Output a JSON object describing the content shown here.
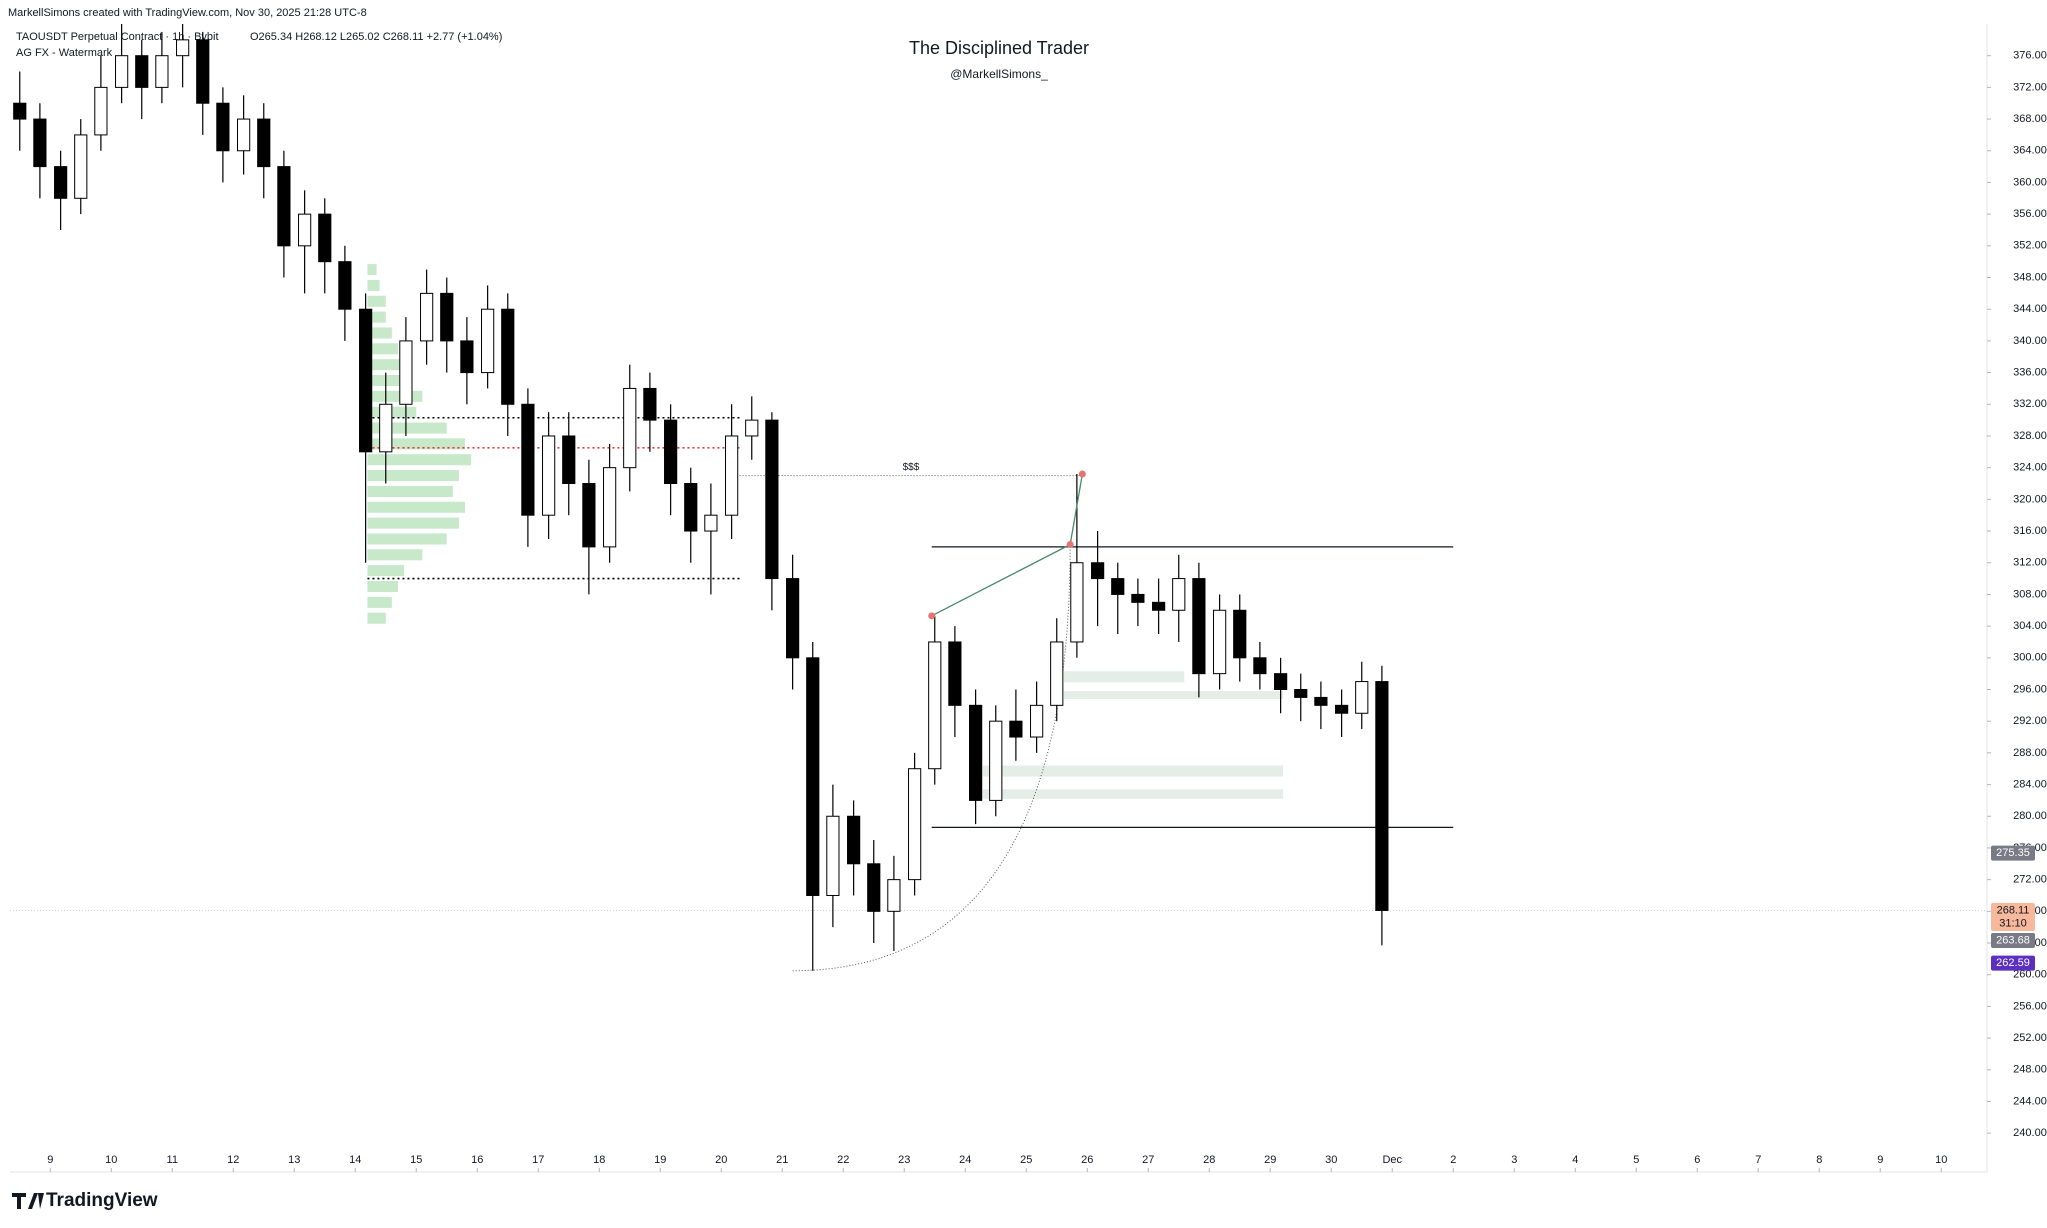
{
  "chart_data": {
    "type": "candlestick",
    "header": {
      "credit": "MarkellSimons created with TradingView.com, Nov 30, 2025 21:28 UTC-8",
      "symbol": "TAOUSDT Perpetual Contract · 1h · Bybit",
      "ohlc": "O265.34 H268.12 L265.02 C268.11 +2.77 (+1.04%)",
      "indicator": "AG FX - Watermark"
    },
    "title": "The Disciplined Trader",
    "subtitle": "@MarkellSimons_",
    "brand": "TradingView",
    "up_color": "#ffffff",
    "down_color": "#000000",
    "wick_color": "#000000",
    "grid": false,
    "x": [
      8.5,
      8.83,
      9.17,
      9.5,
      9.83,
      10.17,
      10.5,
      10.83,
      11.17,
      11.5,
      11.83,
      12.17,
      12.5,
      12.83,
      13.17,
      13.5,
      13.83,
      14.17,
      14.5,
      14.83,
      15.17,
      15.5,
      15.83,
      16.17,
      16.5,
      16.83,
      17.17,
      17.5,
      17.83,
      18.17,
      18.5,
      18.83,
      19.17,
      19.5,
      19.83,
      20.17,
      20.5,
      20.83,
      21.17,
      21.5,
      21.83,
      22.17,
      22.5,
      22.83,
      23.17,
      23.5,
      23.83,
      24.17,
      24.5,
      24.83,
      25.17,
      25.5,
      25.83,
      26.17,
      26.5,
      26.83,
      27.17,
      27.5,
      27.83,
      28.17,
      28.5,
      28.83,
      29.17,
      29.5,
      29.83,
      30.17,
      30.5,
      30.83
    ],
    "open": [
      370,
      368,
      362,
      358,
      366,
      372,
      376,
      372,
      376,
      378,
      370,
      364,
      368,
      362,
      352,
      356,
      350,
      344,
      326,
      332,
      340,
      346,
      340,
      336,
      344,
      332,
      318,
      328,
      322,
      314,
      324,
      334,
      330,
      322,
      316,
      318,
      328,
      330,
      310,
      300,
      270,
      280,
      274,
      268,
      272,
      286,
      302,
      294,
      282,
      292,
      290,
      294,
      302,
      312,
      310,
      308,
      307,
      306,
      310,
      298,
      306,
      300,
      298,
      296,
      295,
      294,
      293,
      297
    ],
    "high": [
      374,
      370,
      364,
      368,
      376,
      380,
      378,
      379,
      380,
      379,
      372,
      371,
      370,
      364,
      359,
      358,
      352,
      346,
      336,
      343,
      349,
      348,
      343,
      347,
      346,
      334,
      331,
      331,
      325,
      327,
      337,
      336,
      332,
      324,
      322,
      332,
      333,
      331,
      313,
      302,
      284,
      282,
      277,
      275,
      288,
      305.3,
      304,
      296,
      294,
      296,
      297,
      305,
      323.2,
      316,
      312,
      310,
      310,
      313,
      312,
      308,
      308,
      302,
      300,
      298,
      297,
      296,
      299.5,
      299
    ],
    "low": [
      364,
      358,
      354,
      356,
      364,
      370,
      368,
      370,
      372,
      366,
      360,
      361,
      358,
      348,
      346,
      346,
      340,
      312,
      322,
      328,
      337,
      336,
      332,
      334,
      328,
      314,
      315,
      318,
      308,
      312,
      321,
      326,
      318,
      312,
      308,
      315,
      325,
      306,
      296,
      260.5,
      266,
      270,
      264,
      263,
      270,
      284,
      290,
      279,
      280,
      287,
      288,
      292,
      300,
      304,
      303,
      304,
      303,
      302,
      295,
      296,
      297,
      296,
      293,
      292,
      291,
      290,
      291,
      263.7
    ],
    "close": [
      368,
      362,
      358,
      366,
      372,
      376,
      372,
      376,
      378,
      370,
      364,
      368,
      362,
      352,
      356,
      350,
      344,
      326,
      332,
      340,
      346,
      340,
      336,
      344,
      332,
      318,
      328,
      322,
      314,
      324,
      334,
      330,
      322,
      316,
      318,
      328,
      330,
      310,
      300,
      270,
      280,
      274,
      268,
      272,
      286,
      302,
      294,
      282,
      292,
      290,
      294,
      302,
      312,
      310,
      308,
      307,
      306,
      310,
      298,
      306,
      300,
      298,
      296,
      295,
      294,
      293,
      297,
      268.11
    ],
    "xlim": [
      8.34,
      40.75
    ],
    "ylim": [
      238,
      380
    ],
    "xticks": [
      {
        "value": 9,
        "label": "9"
      },
      10,
      11,
      12,
      13,
      14,
      15,
      16,
      17,
      18,
      19,
      20,
      21,
      22,
      23,
      24,
      25,
      26,
      27,
      28,
      29,
      30,
      {
        "value": 31,
        "label": "Dec"
      },
      {
        "value": 32,
        "label": "2"
      },
      {
        "value": 33,
        "label": "3"
      },
      {
        "value": 34,
        "label": "4"
      },
      {
        "value": 35,
        "label": "5"
      },
      {
        "value": 36,
        "label": "6"
      },
      {
        "value": 37,
        "label": "7"
      },
      {
        "value": 38,
        "label": "8"
      },
      {
        "value": 39,
        "label": "9"
      },
      {
        "value": 40,
        "label": "10"
      }
    ],
    "yticks": [
      {
        "value": 240,
        "label": "240.00"
      },
      {
        "value": 244,
        "label": "244.00"
      },
      {
        "value": 248,
        "label": "248.00"
      },
      {
        "value": 252,
        "label": "252.00"
      },
      {
        "value": 256,
        "label": "256.00"
      },
      {
        "value": 260,
        "label": "260.00"
      },
      {
        "value": 264,
        "label": "264.00"
      },
      {
        "value": 268,
        "label": "268.00"
      },
      {
        "value": 272,
        "label": "272.00"
      },
      {
        "value": 276,
        "label": "276.00"
      },
      {
        "value": 280,
        "label": "280.00"
      },
      {
        "value": 284,
        "label": "284.00"
      },
      {
        "value": 288,
        "label": "288.00"
      },
      {
        "value": 292,
        "label": "292.00"
      },
      {
        "value": 296,
        "label": "296.00"
      },
      {
        "value": 300,
        "label": "300.00"
      },
      {
        "value": 304,
        "label": "304.00"
      },
      {
        "value": 308,
        "label": "308.00"
      },
      {
        "value": 312,
        "label": "312.00"
      },
      {
        "value": 316,
        "label": "316.00"
      },
      {
        "value": 320,
        "label": "320.00"
      },
      {
        "value": 324,
        "label": "324.00"
      },
      {
        "value": 328,
        "label": "328.00"
      },
      {
        "value": 332,
        "label": "332.00"
      },
      {
        "value": 336,
        "label": "336.00"
      },
      {
        "value": 340,
        "label": "340.00"
      },
      {
        "value": 344,
        "label": "344.00"
      },
      {
        "value": 348,
        "label": "348.00"
      },
      {
        "value": 352,
        "label": "352.00"
      },
      {
        "value": 356,
        "label": "356.00"
      },
      {
        "value": 360,
        "label": "360.00"
      },
      {
        "value": 364,
        "label": "364.00"
      },
      {
        "value": 368,
        "label": "368.00"
      },
      {
        "value": 372,
        "label": "372.00"
      },
      {
        "value": 376,
        "label": "376.00"
      }
    ],
    "price_tags": [
      {
        "value": 275.35,
        "label": "275.35",
        "color": "#787b86"
      },
      {
        "value": 268.11,
        "label": "268.11",
        "sub": "31:10",
        "color": "#f7b89c"
      },
      {
        "value": 263.68,
        "label": "263.68",
        "color": "#787b86"
      },
      {
        "value": 262.59,
        "label": "262.59",
        "color": "#5b2fbf"
      }
    ],
    "levels": [
      {
        "y": 314,
        "x": [
          23.45,
          32
        ]
      },
      {
        "y": 278.6,
        "x": [
          23.45,
          32
        ]
      }
    ],
    "range_lines": [
      {
        "y": 330.3,
        "x": [
          14.2,
          20.3
        ],
        "color": "#000000"
      },
      {
        "y": 310,
        "x": [
          14.2,
          20.3
        ],
        "color": "#000000"
      },
      {
        "y": 326.5,
        "x": [
          14.2,
          20.3
        ],
        "color": "#e53935"
      }
    ],
    "liquidity": {
      "label": "$$$",
      "y": 323,
      "x": [
        20.3,
        25.92
      ]
    },
    "trend": {
      "x": [
        23.45,
        25.72,
        25.92
      ],
      "y": [
        305.3,
        314.3,
        323.2
      ],
      "color": "#4a8a6a"
    },
    "zones": [
      {
        "x": [
          25.62,
          27.59
        ],
        "y": [
          296.9,
          298.3
        ]
      },
      {
        "x": [
          25.62,
          29.21
        ],
        "y": [
          294.8,
          295.8
        ]
      },
      {
        "x": [
          24.29,
          29.21
        ],
        "y": [
          285,
          286.4
        ]
      },
      {
        "x": [
          24.29,
          29.21
        ],
        "y": [
          282.2,
          283.4
        ]
      }
    ],
    "arc": {
      "x": [
        21.17,
        25.72
      ],
      "y": [
        260.5,
        314.3
      ]
    },
    "volume_profile": {
      "x": 14.2,
      "prices": [
        305,
        307,
        309,
        311,
        313,
        315,
        317,
        319,
        321,
        323,
        325,
        327,
        329,
        331,
        333,
        335,
        337,
        339,
        341,
        343,
        345,
        347,
        349
      ],
      "volumes": [
        0.3,
        0.4,
        0.5,
        0.6,
        0.9,
        1.3,
        1.5,
        1.6,
        1.4,
        1.5,
        1.7,
        1.6,
        1.3,
        0.8,
        0.9,
        0.7,
        0.6,
        0.5,
        0.4,
        0.3,
        0.3,
        0.2,
        0.15
      ],
      "color": "#b9e3bd"
    }
  }
}
